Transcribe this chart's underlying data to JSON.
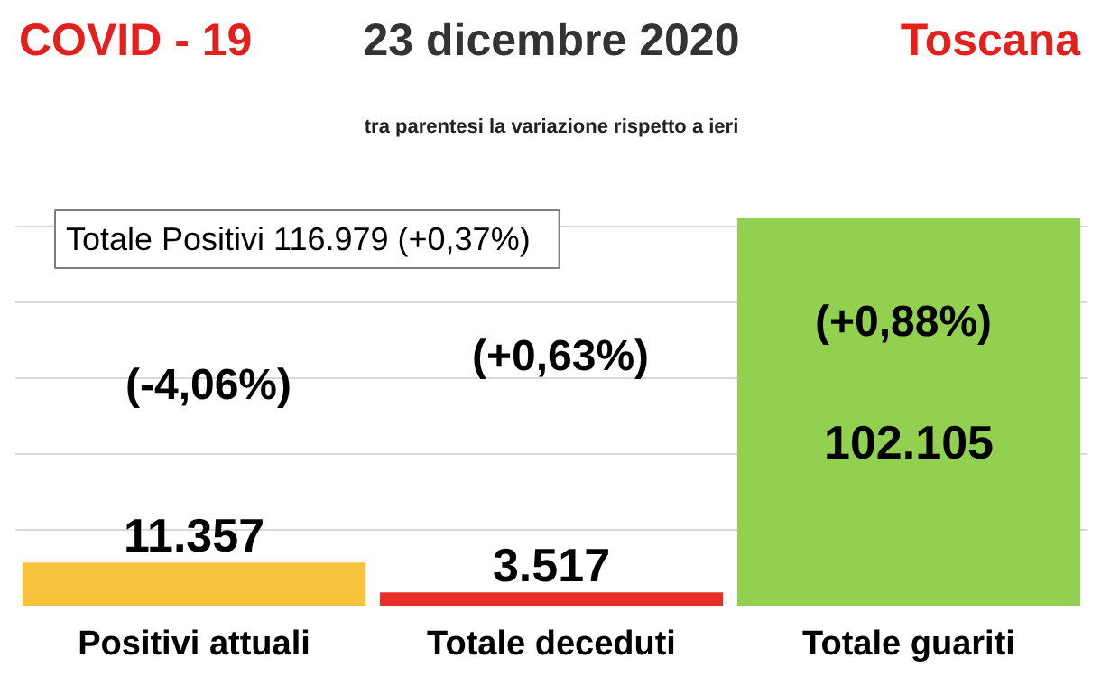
{
  "chart_data": {
    "type": "bar",
    "title": "23 dicembre 2020",
    "subtitle": "tra parentesi la variazione rispetto a ieri",
    "categories": [
      "Positivi attuali",
      "Totale deceduti",
      "Totale guariti"
    ],
    "values": [
      11357,
      3517,
      102105
    ],
    "colors": [
      "#f7c33c",
      "#e8302a",
      "#92d050"
    ],
    "value_labels": [
      "11.357",
      "3.517",
      "102.105"
    ],
    "grid": "y",
    "tick_labels": "x",
    "annotations": [
      "COVID - 19",
      "Toscana",
      "Totale Positivi   116.979 (+0,37%)",
      "(-4,06%)",
      "(+0,63%)",
      "(+0,88%)"
    ]
  }
}
